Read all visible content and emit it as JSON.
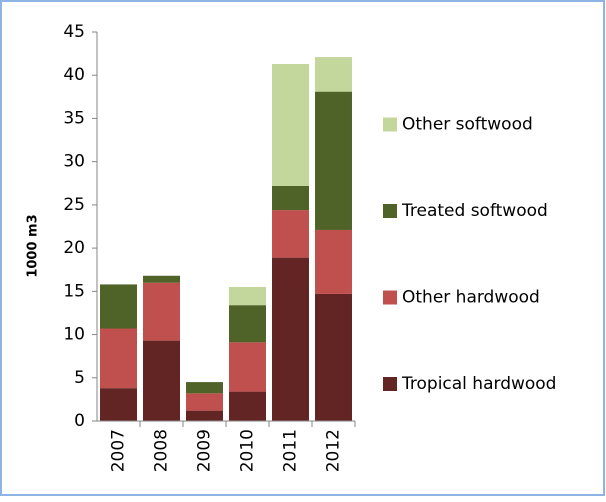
{
  "chart_data": {
    "type": "bar",
    "stacked": true,
    "y_label": "1000 m3",
    "categories": [
      "2007",
      "2008",
      "2009",
      "2010",
      "2011",
      "2012"
    ],
    "series": [
      {
        "name": "Tropical hardwood",
        "color": "#632523",
        "values": [
          3.8,
          9.3,
          1.2,
          3.4,
          18.9,
          14.7
        ]
      },
      {
        "name": "Other hardwood",
        "color": "#c0504d",
        "values": [
          6.9,
          6.7,
          2.0,
          5.7,
          5.5,
          7.4
        ]
      },
      {
        "name": "Treated softwood",
        "color": "#4f6228",
        "values": [
          5.1,
          0.8,
          1.3,
          4.3,
          2.8,
          16.0
        ]
      },
      {
        "name": "Other softwood",
        "color": "#c3d69b",
        "values": [
          0,
          0,
          0,
          2.1,
          14.1,
          4.0
        ]
      }
    ],
    "ylim": [
      0,
      45
    ],
    "yticks": [
      0,
      5,
      10,
      15,
      20,
      25,
      30,
      35,
      40,
      45
    ],
    "grid": false,
    "legend": "right"
  }
}
